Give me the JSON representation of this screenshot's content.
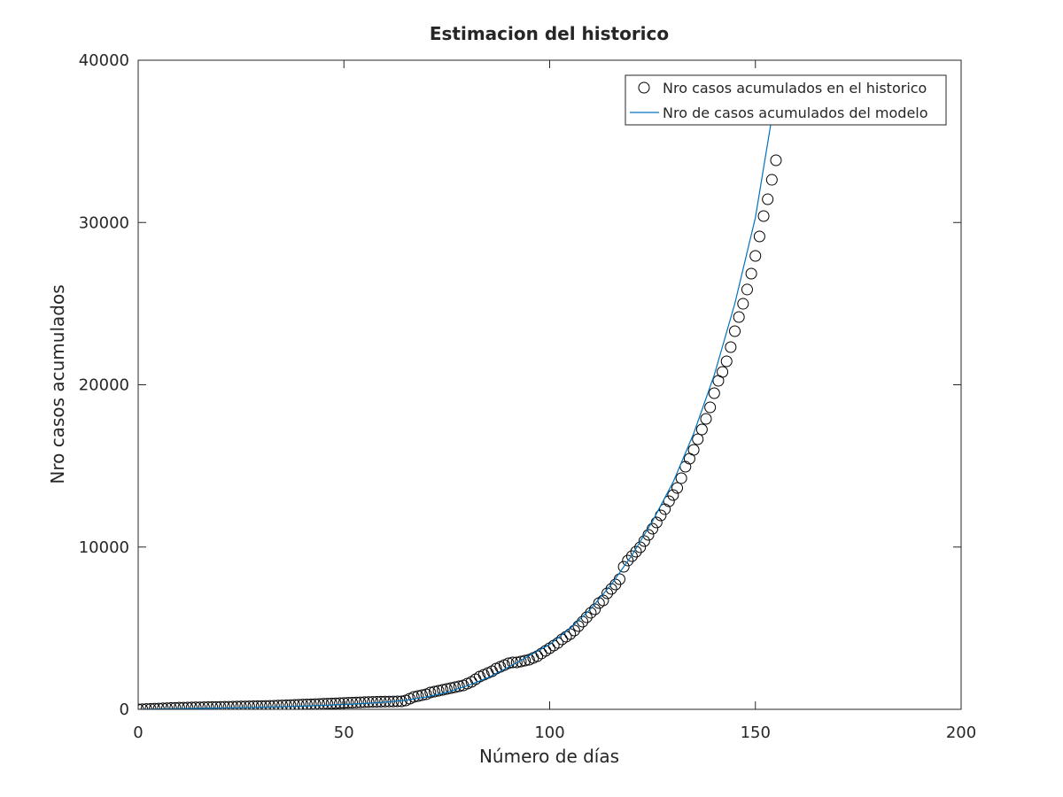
{
  "chart_data": {
    "type": "scatter",
    "title": "Estimacion del historico",
    "xlabel": "Número de días",
    "ylabel": "Nro casos acumulados",
    "xlim": [
      0,
      200
    ],
    "xticks": [
      0,
      50,
      100,
      150,
      200
    ],
    "ylim": [
      0,
      40000
    ],
    "yticks": [
      0,
      10000,
      20000,
      30000,
      40000
    ],
    "legend": "upper right",
    "series": [
      {
        "name": "Nro casos acumulados en el historico",
        "type": "scatter",
        "color": "#000000",
        "x": [
          0,
          1,
          2,
          3,
          4,
          5,
          6,
          7,
          8,
          9,
          10,
          11,
          12,
          13,
          14,
          15,
          16,
          17,
          18,
          19,
          20,
          21,
          22,
          23,
          24,
          25,
          26,
          27,
          28,
          29,
          30,
          31,
          32,
          33,
          34,
          35,
          36,
          37,
          38,
          39,
          40,
          41,
          42,
          43,
          44,
          45,
          46,
          47,
          48,
          49,
          50,
          51,
          52,
          53,
          54,
          55,
          56,
          57,
          58,
          59,
          60,
          61,
          62,
          63,
          64,
          65,
          66,
          67,
          68,
          69,
          70,
          71,
          72,
          73,
          74,
          75,
          76,
          77,
          78,
          79,
          80,
          81,
          82,
          83,
          84,
          85,
          86,
          87,
          88,
          89,
          90,
          91,
          92,
          93,
          94,
          95,
          96,
          97,
          98,
          99,
          100,
          101,
          102,
          103,
          104,
          105,
          106,
          107,
          108,
          109,
          110,
          111,
          112,
          113,
          114,
          115,
          116,
          117,
          118,
          119,
          120,
          121,
          122,
          123,
          124,
          125,
          126,
          127,
          128,
          129,
          130,
          131,
          132,
          133,
          134,
          135,
          136,
          137,
          138,
          139,
          140,
          141,
          142,
          143,
          144,
          145,
          146,
          147,
          148,
          149,
          150,
          151,
          152,
          153,
          154,
          155
        ],
        "values": [
          0,
          10,
          20,
          30,
          40,
          50,
          60,
          70,
          80,
          90,
          100,
          105,
          110,
          115,
          120,
          125,
          130,
          135,
          140,
          145,
          150,
          155,
          160,
          165,
          170,
          175,
          180,
          185,
          190,
          195,
          200,
          205,
          210,
          220,
          230,
          240,
          250,
          260,
          270,
          280,
          290,
          300,
          310,
          320,
          330,
          340,
          350,
          360,
          370,
          380,
          390,
          400,
          410,
          420,
          430,
          440,
          450,
          460,
          465,
          470,
          475,
          480,
          485,
          490,
          490,
          545,
          655,
          765,
          820,
          875,
          930,
          1035,
          1090,
          1145,
          1200,
          1255,
          1310,
          1365,
          1420,
          1475,
          1580,
          1690,
          1855,
          2020,
          2130,
          2240,
          2345,
          2510,
          2620,
          2730,
          2840,
          2890,
          2890,
          2945,
          3000,
          3055,
          3165,
          3275,
          3440,
          3600,
          3765,
          3930,
          4090,
          4310,
          4475,
          4640,
          4855,
          5130,
          5400,
          5675,
          5950,
          6165,
          6550,
          6710,
          7150,
          7420,
          7695,
          8020,
          8785,
          9170,
          9440,
          9715,
          9985,
          10370,
          10750,
          11130,
          11515,
          11950,
          12335,
          12825,
          13205,
          13640,
          14245,
          14950,
          15445,
          15990,
          16645,
          17245,
          17900,
          18610,
          19480,
          20245,
          20790,
          21445,
          22320,
          23300,
          24175,
          24990,
          25870,
          26850,
          27940,
          29140,
          30395,
          31430,
          32630,
          33833
        ]
      },
      {
        "name": "Nro de casos acumulados del modelo",
        "type": "line",
        "color": "#0072bd",
        "x": [
          0,
          5,
          10,
          15,
          20,
          25,
          30,
          35,
          40,
          45,
          50,
          55,
          60,
          65,
          70,
          75,
          80,
          85,
          90,
          95,
          100,
          105,
          110,
          115,
          120,
          125,
          130,
          135,
          140,
          145,
          150,
          155
        ],
        "values": [
          0,
          20,
          40,
          60,
          80,
          100,
          130,
          160,
          200,
          250,
          300,
          360,
          440,
          560,
          760,
          1050,
          1450,
          1950,
          2600,
          3300,
          4000,
          5000,
          6200,
          7700,
          9500,
          11600,
          14000,
          17000,
          20600,
          25000,
          30300,
          38000
        ]
      }
    ]
  }
}
